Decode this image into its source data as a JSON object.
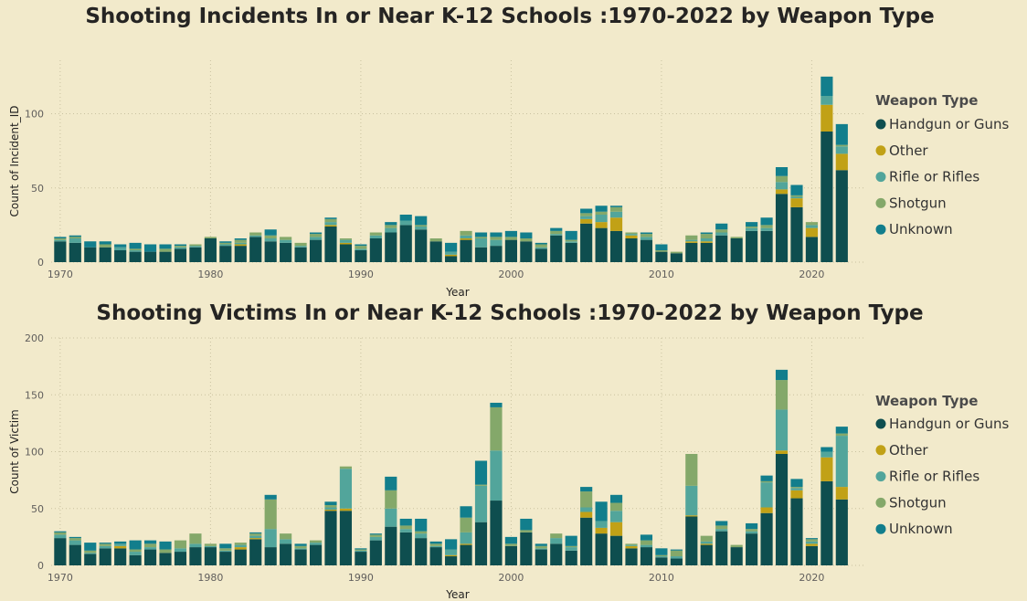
{
  "background": "#F2EACB",
  "colors": {
    "Handgun or Guns": "#0E4E4F",
    "Other": "#C1A116",
    "Rifle or Rifles": "#52A59B",
    "Shotgun": "#84A86A",
    "Unknown": "#127E8C"
  },
  "chart_data": [
    {
      "type": "bar",
      "stacked": true,
      "title": "Shooting Incidents In or Near K-12 Schools :1970-2022 by Weapon Type",
      "xlabel": "Year",
      "ylabel": "Count of Incident_ID",
      "xlim": [
        1969.4,
        2023.5
      ],
      "ylim": [
        0,
        136
      ],
      "yticks": [
        0,
        50,
        100
      ],
      "xticks": [
        1970,
        1980,
        1990,
        2000,
        2010,
        2020
      ],
      "legend_title": "Weapon Type",
      "legend_position": "right",
      "years": [
        1970,
        1971,
        1972,
        1973,
        1974,
        1975,
        1976,
        1977,
        1978,
        1979,
        1980,
        1981,
        1982,
        1983,
        1984,
        1985,
        1986,
        1987,
        1988,
        1989,
        1990,
        1991,
        1992,
        1993,
        1994,
        1995,
        1996,
        1997,
        1998,
        1999,
        2000,
        2001,
        2002,
        2003,
        2004,
        2005,
        2006,
        2007,
        2008,
        2009,
        2010,
        2011,
        2012,
        2013,
        2014,
        2015,
        2016,
        2017,
        2018,
        2019,
        2020,
        2021,
        2022
      ],
      "series": [
        {
          "name": "Handgun or Guns",
          "values": [
            14,
            13,
            10,
            10,
            8,
            7,
            7,
            7,
            9,
            10,
            16,
            11,
            11,
            17,
            14,
            13,
            10,
            15,
            24,
            12,
            8,
            16,
            20,
            25,
            22,
            14,
            4,
            15,
            10,
            11,
            15,
            14,
            9,
            18,
            13,
            26,
            23,
            21,
            16,
            15,
            7,
            6,
            13,
            13,
            18,
            16,
            21,
            21,
            46,
            37,
            17,
            88,
            62
          ]
        },
        {
          "name": "Other",
          "values": [
            0,
            0,
            0,
            0,
            0,
            0,
            0,
            0,
            0,
            0,
            0,
            0,
            1,
            0,
            0,
            0,
            0,
            0,
            1,
            1,
            0,
            0,
            0,
            0,
            0,
            0,
            1,
            1,
            0,
            0,
            0,
            0,
            0,
            0,
            0,
            3,
            4,
            9,
            2,
            0,
            0,
            0,
            1,
            1,
            0,
            0,
            0,
            0,
            3,
            6,
            6,
            18,
            11
          ]
        },
        {
          "name": "Rifle or Rifles",
          "values": [
            1,
            3,
            0,
            0,
            2,
            1,
            0,
            0,
            1,
            1,
            0,
            1,
            1,
            1,
            2,
            2,
            1,
            2,
            2,
            2,
            1,
            2,
            3,
            3,
            2,
            0,
            2,
            2,
            6,
            4,
            0,
            0,
            1,
            1,
            1,
            2,
            5,
            4,
            1,
            2,
            0,
            0,
            1,
            2,
            2,
            0,
            2,
            2,
            5,
            1,
            2,
            6,
            5
          ]
        },
        {
          "name": "Shotgun",
          "values": [
            1,
            1,
            0,
            2,
            0,
            1,
            0,
            2,
            1,
            1,
            1,
            1,
            2,
            2,
            2,
            2,
            2,
            2,
            2,
            1,
            2,
            2,
            2,
            0,
            1,
            2,
            0,
            3,
            1,
            2,
            2,
            2,
            2,
            2,
            1,
            2,
            2,
            3,
            1,
            2,
            1,
            1,
            3,
            3,
            2,
            1,
            1,
            2,
            4,
            1,
            2,
            0,
            1
          ]
        },
        {
          "name": "Unknown",
          "values": [
            1,
            1,
            4,
            2,
            2,
            4,
            5,
            3,
            1,
            0,
            0,
            1,
            1,
            0,
            4,
            0,
            0,
            1,
            1,
            0,
            1,
            0,
            2,
            4,
            6,
            0,
            6,
            0,
            3,
            3,
            4,
            4,
            1,
            2,
            6,
            3,
            4,
            1,
            0,
            1,
            4,
            0,
            0,
            1,
            4,
            0,
            3,
            5,
            6,
            7,
            0,
            13,
            14
          ]
        }
      ]
    },
    {
      "type": "bar",
      "stacked": true,
      "title": "Shooting Victims In or Near K-12 Schools :1970-2022 by Weapon Type",
      "xlabel": "Year",
      "ylabel": "Count of Victim",
      "xlim": [
        1969.4,
        2023.5
      ],
      "ylim": [
        0,
        200
      ],
      "yticks": [
        0,
        50,
        100,
        150,
        200
      ],
      "xticks": [
        1970,
        1980,
        1990,
        2000,
        2010,
        2020
      ],
      "legend_title": "Weapon Type",
      "legend_position": "right",
      "years": [
        1970,
        1971,
        1972,
        1973,
        1974,
        1975,
        1976,
        1977,
        1978,
        1979,
        1980,
        1981,
        1982,
        1983,
        1984,
        1985,
        1986,
        1987,
        1988,
        1989,
        1990,
        1991,
        1992,
        1993,
        1994,
        1995,
        1996,
        1997,
        1998,
        1999,
        2000,
        2001,
        2002,
        2003,
        2004,
        2005,
        2006,
        2007,
        2008,
        2009,
        2010,
        2011,
        2012,
        2013,
        2014,
        2015,
        2016,
        2017,
        2018,
        2019,
        2020,
        2021,
        2022
      ],
      "series": [
        {
          "name": "Handgun or Guns",
          "values": [
            24,
            18,
            10,
            15,
            15,
            9,
            14,
            11,
            12,
            16,
            16,
            12,
            14,
            23,
            16,
            19,
            14,
            18,
            48,
            48,
            12,
            22,
            34,
            29,
            24,
            16,
            8,
            18,
            38,
            57,
            17,
            29,
            14,
            19,
            13,
            42,
            28,
            26,
            15,
            16,
            7,
            6,
            43,
            18,
            30,
            16,
            28,
            46,
            98,
            59,
            17,
            74,
            58
          ]
        },
        {
          "name": "Other",
          "values": [
            0,
            0,
            0,
            0,
            2,
            0,
            0,
            0,
            0,
            0,
            0,
            0,
            2,
            1,
            0,
            0,
            0,
            0,
            1,
            2,
            0,
            0,
            0,
            0,
            0,
            0,
            1,
            1,
            0,
            0,
            0,
            0,
            0,
            0,
            0,
            5,
            5,
            12,
            2,
            0,
            0,
            0,
            1,
            1,
            0,
            0,
            0,
            5,
            3,
            7,
            2,
            21,
            11
          ]
        },
        {
          "name": "Rifle or Rifles",
          "values": [
            3,
            4,
            1,
            2,
            2,
            3,
            2,
            0,
            3,
            3,
            1,
            1,
            2,
            2,
            16,
            4,
            1,
            2,
            2,
            35,
            1,
            3,
            16,
            3,
            4,
            1,
            5,
            10,
            32,
            44,
            0,
            0,
            1,
            5,
            3,
            4,
            6,
            10,
            1,
            2,
            1,
            2,
            26,
            2,
            2,
            0,
            2,
            22,
            36,
            2,
            2,
            5,
            45
          ]
        },
        {
          "name": "Shotgun",
          "values": [
            2,
            2,
            2,
            2,
            0,
            2,
            3,
            3,
            7,
            9,
            2,
            2,
            2,
            2,
            26,
            5,
            2,
            2,
            2,
            2,
            1,
            2,
            16,
            3,
            2,
            2,
            0,
            13,
            1,
            38,
            2,
            2,
            2,
            4,
            1,
            14,
            0,
            7,
            1,
            4,
            1,
            5,
            28,
            5,
            3,
            2,
            2,
            1,
            26,
            1,
            2,
            0,
            2
          ]
        },
        {
          "name": "Unknown",
          "values": [
            1,
            1,
            7,
            1,
            2,
            8,
            3,
            7,
            0,
            0,
            0,
            4,
            0,
            1,
            4,
            0,
            2,
            0,
            3,
            0,
            1,
            1,
            12,
            6,
            11,
            2,
            9,
            10,
            21,
            4,
            6,
            10,
            2,
            0,
            9,
            4,
            17,
            7,
            0,
            5,
            6,
            1,
            0,
            0,
            4,
            0,
            5,
            5,
            9,
            7,
            1,
            4,
            6
          ]
        }
      ]
    }
  ]
}
